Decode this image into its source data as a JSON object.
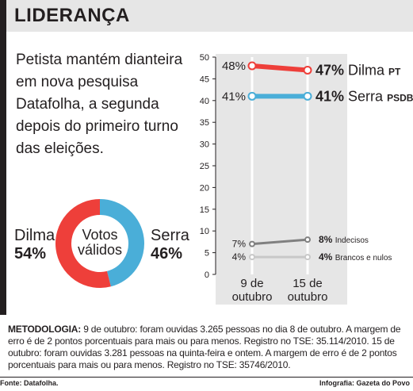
{
  "header": {
    "title": "LIDERANÇA"
  },
  "headline": "Petista mantém dianteira em nova pesquisa Datafolha, a segunda depois do primeiro turno das eleições.",
  "donut": {
    "center_line1": "Votos",
    "center_line2": "válidos",
    "slices": [
      {
        "name": "Dilma",
        "value_label": "54%",
        "value": 54,
        "color": "#ee3f3a"
      },
      {
        "name": "Serra",
        "value_label": "46%",
        "value": 46,
        "color": "#4aaed8"
      }
    ]
  },
  "chart_data": {
    "type": "line",
    "x": [
      "9 de outubro",
      "15 de outubro"
    ],
    "x_line1": [
      "9 de",
      "15 de"
    ],
    "x_line2": [
      "outubro",
      "outubro"
    ],
    "ylim": [
      0,
      50
    ],
    "yticks": [
      0,
      5,
      10,
      15,
      20,
      25,
      30,
      35,
      40,
      45,
      50
    ],
    "grid": "vertical-lines-at-categories",
    "series": [
      {
        "name": "Dilma",
        "suffix": "PT",
        "values": [
          48,
          47
        ],
        "start_label": "48%",
        "end_label": "47%",
        "color": "#ee3f3a",
        "width": "thick"
      },
      {
        "name": "Serra",
        "suffix": "PSDB",
        "values": [
          41,
          41
        ],
        "start_label": "41%",
        "end_label": "41%",
        "color": "#4aaed8",
        "width": "thick"
      },
      {
        "name": "Indecisos",
        "suffix": "",
        "values": [
          7,
          8
        ],
        "start_label": "7%",
        "end_label": "8%",
        "color": "#808080",
        "width": "thin"
      },
      {
        "name": "Brancos e nulos",
        "suffix": "",
        "values": [
          4,
          4
        ],
        "start_label": "4%",
        "end_label": "4%",
        "color": "#c8c8c8",
        "width": "thin"
      }
    ]
  },
  "methodology": {
    "label": "METODOLOGIA:",
    "text": "9 de outubro: foram ouvidas 3.265 pessoas no dia 8 de outubro. A margem de erro é de 2 pontos porcentuais para mais ou para menos. Registro no TSE: 35.114/2010. 15 de outubro: foram ouvidas 3.281 pessoas na quinta-feira e ontem. A margem de erro é de 2 pontos porcentuais para mais ou para menos. Registro no TSE: 35746/2010."
  },
  "footer": {
    "source": "Fonte: Datafolha.",
    "credit": "Infografia: Gazeta do Povo"
  }
}
